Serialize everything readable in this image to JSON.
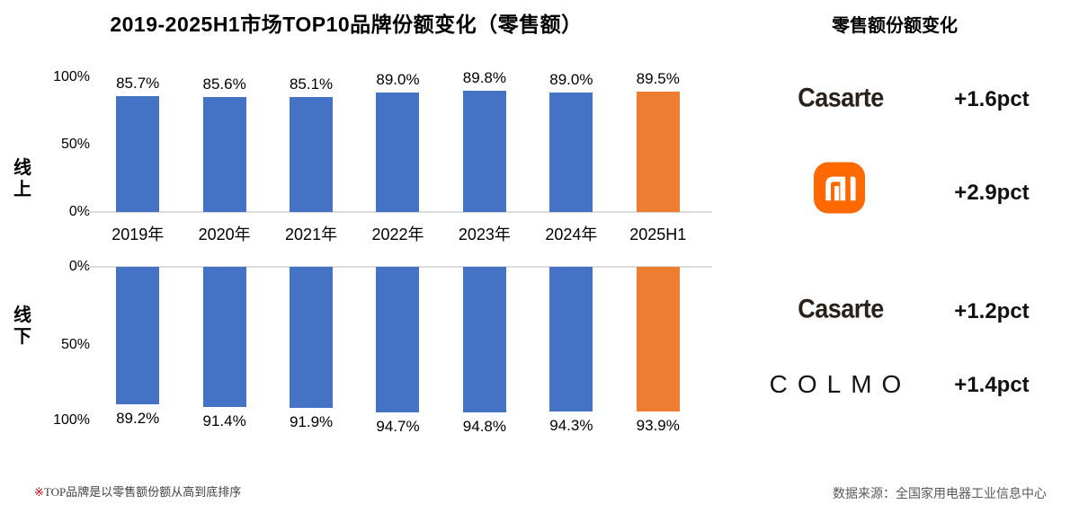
{
  "title": "2019-2025H1市场TOP10品牌份额变化（零售额）",
  "right_panel": {
    "title": "零售额份额变化",
    "rows": [
      {
        "brand": "Casarte",
        "logo": "casarte-wordmark",
        "change": "+1.6pct",
        "segment": "online"
      },
      {
        "brand": "Xiaomi",
        "logo": "xiaomi-mi-logo",
        "change": "+2.9pct",
        "segment": "online"
      },
      {
        "brand": "Casarte",
        "logo": "casarte-wordmark",
        "change": "+1.2pct",
        "segment": "offline"
      },
      {
        "brand": "COLMO",
        "logo": "colmo-wordmark",
        "change": "+1.4pct",
        "segment": "offline"
      }
    ]
  },
  "chart_data": [
    {
      "type": "bar",
      "panel_label": "线上",
      "direction": "up",
      "categories": [
        "2019年",
        "2020年",
        "2021年",
        "2022年",
        "2023年",
        "2024年",
        "2025H1"
      ],
      "values": [
        85.7,
        85.6,
        85.1,
        89.0,
        89.8,
        89.0,
        89.5
      ],
      "value_labels": [
        "85.7%",
        "85.6%",
        "85.1%",
        "89.0%",
        "89.8%",
        "89.0%",
        "89.5%"
      ],
      "y_ticks": [
        "100%",
        "50%",
        "0%"
      ],
      "ylim": [
        0,
        100
      ],
      "grid": false,
      "highlight_last": true,
      "unit": "%"
    },
    {
      "type": "bar",
      "panel_label": "线下",
      "direction": "down",
      "categories": [
        "2019年",
        "2020年",
        "2021年",
        "2022年",
        "2023年",
        "2024年",
        "2025H1"
      ],
      "values": [
        89.2,
        91.4,
        91.9,
        94.7,
        94.8,
        94.3,
        93.9
      ],
      "value_labels": [
        "89.2%",
        "91.4%",
        "91.9%",
        "94.7%",
        "94.8%",
        "94.3%",
        "93.9%"
      ],
      "y_ticks": [
        "0%",
        "50%",
        "100%"
      ],
      "ylim": [
        0,
        100
      ],
      "grid": false,
      "highlight_last": true,
      "unit": "%"
    }
  ],
  "footnote_marker": "※",
  "footnote_text": "TOP品牌是以零售额份额从高到底排序",
  "source": "数据来源：全国家用电器工业信息中心",
  "colors": {
    "bar_blue": "#4472C4",
    "bar_orange": "#ED7D31",
    "xiaomi_orange": "#FF6900",
    "footnote_red": "#C00000",
    "axis_line": "#DCDCDC"
  }
}
